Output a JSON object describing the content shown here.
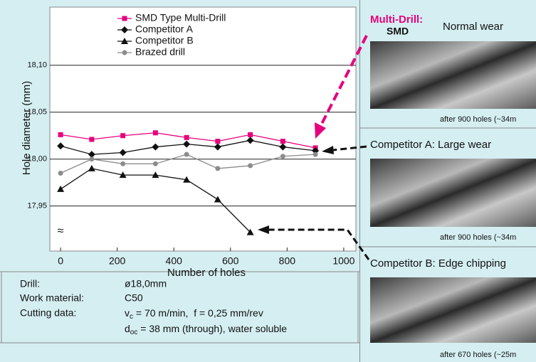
{
  "chart_data": {
    "type": "line",
    "y_label": "Hole diameter (mm)",
    "x_label": "Number of holes",
    "xlim": [
      -38,
      1043
    ],
    "xticks": [
      0,
      200,
      400,
      600,
      800,
      1000
    ],
    "ylim": [
      17.902,
      18.162
    ],
    "yticks": [
      {
        "value": 17.95,
        "label": "17,95"
      },
      {
        "value": 18.0,
        "label": "18,00"
      },
      {
        "value": 18.05,
        "label": "18,05"
      },
      {
        "value": 18.1,
        "label": "18,10"
      }
    ],
    "axis_break": {
      "value": 17.923,
      "label": "≈"
    },
    "grid": true,
    "x": [
      0,
      110,
      220,
      335,
      445,
      555,
      670,
      785,
      900
    ],
    "series": [
      {
        "name": "SMD Type Multi-Drill",
        "color": "#e5007d",
        "marker": "square",
        "values": [
          18.026,
          18.021,
          18.025,
          18.028,
          18.023,
          18.019,
          18.026,
          18.019,
          18.012
        ]
      },
      {
        "name": "Competitor A",
        "color": "#111111",
        "marker": "diamond",
        "values": [
          18.014,
          18.005,
          18.007,
          18.013,
          18.016,
          18.013,
          18.02,
          18.013,
          18.009
        ]
      },
      {
        "name": "Competitor B",
        "color": "#111111",
        "marker": "triangle",
        "values": [
          17.968,
          17.99,
          17.983,
          17.983,
          17.978,
          17.957,
          17.922,
          null,
          null
        ]
      },
      {
        "name": "Brazed drill",
        "color": "#8c8c8c",
        "marker": "circle",
        "values": [
          17.985,
          18.0,
          17.995,
          17.995,
          18.005,
          17.99,
          17.993,
          18.003,
          18.005
        ]
      }
    ]
  },
  "conditions": {
    "drill_label": "Drill:",
    "drill_value": "ø18,0mm",
    "material_label": "Work material:",
    "material_value": "C50",
    "cutting_label": "Cutting data:",
    "vc_symbol": "v",
    "vc_sub": "c",
    "vc_text": " = 70 m/min,  f = 0,25 mm/rev",
    "doc_symbol": "d",
    "doc_sub": "oc",
    "doc_text": " = 38 mm (through), water soluble"
  },
  "panels": [
    {
      "brand": "Multi-Drill:",
      "product": "SMD",
      "title": "Normal wear",
      "caption": "after 900 holes (~34m"
    },
    {
      "title": "Competitor A: Large wear",
      "caption": "after 900 holes (~34m"
    },
    {
      "title": "Competitor B: Edge chipping",
      "caption": "after 670 holes (~25m"
    }
  ]
}
